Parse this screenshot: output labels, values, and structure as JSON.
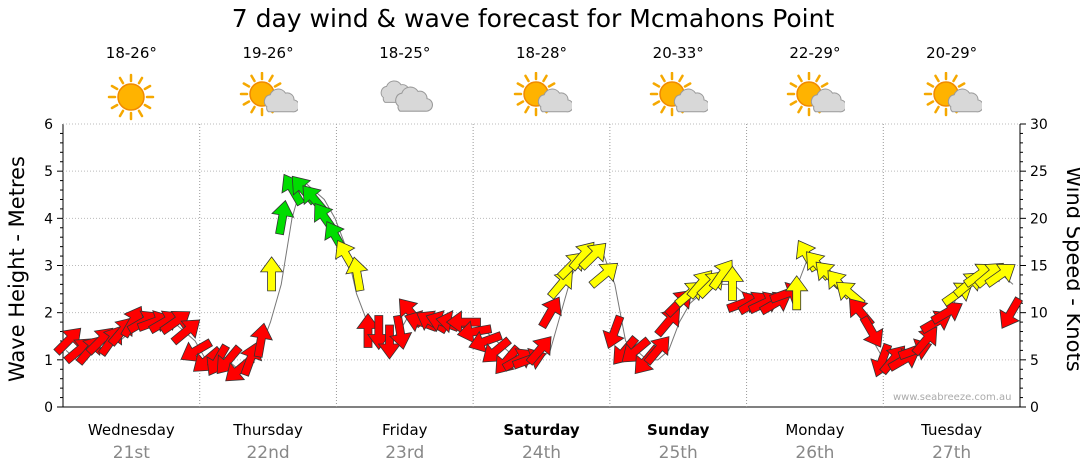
{
  "title": "7 day wind & wave forecast for Mcmahons Point",
  "credit": "www.seabreeze.com.au",
  "colors": {
    "calm": "#ff0000",
    "moderate": "#ffff00",
    "fresh": "#00dd00"
  },
  "days": [
    {
      "name": "Wednesday",
      "date": "21st",
      "temp": "18-26°",
      "icon": "sun-icon",
      "bold": false
    },
    {
      "name": "Thursday",
      "date": "22nd",
      "temp": "19-26°",
      "icon": "sun-cloud-icon",
      "bold": false
    },
    {
      "name": "Friday",
      "date": "23rd",
      "temp": "18-25°",
      "icon": "cloud-icon",
      "bold": false
    },
    {
      "name": "Saturday",
      "date": "24th",
      "temp": "18-28°",
      "icon": "sun-cloud-icon",
      "bold": true
    },
    {
      "name": "Sunday",
      "date": "25th",
      "temp": "20-33°",
      "icon": "sun-cloud-icon",
      "bold": true
    },
    {
      "name": "Monday",
      "date": "26th",
      "temp": "22-29°",
      "icon": "sun-cloud-icon",
      "bold": false
    },
    {
      "name": "Tuesday",
      "date": "27th",
      "temp": "20-29°",
      "icon": "sun-cloud-icon",
      "bold": false
    }
  ],
  "chart_data": {
    "type": "line",
    "ylabel_left": "Wave Height - Metres",
    "ylabel_right": "Wind Speed - Knots",
    "ylim_left": [
      0,
      6
    ],
    "ylim_right": [
      0,
      30
    ],
    "yticks_left": [
      "0",
      "1",
      "2",
      "3",
      "4",
      "5",
      "6"
    ],
    "yticks_right": [
      "0",
      "5",
      "10",
      "15",
      "20",
      "25",
      "30"
    ],
    "grid": true,
    "series": [
      {
        "name": "Wind Speed - Knots",
        "axis": "right",
        "values": [
          6,
          5,
          6,
          6,
          7,
          7,
          8,
          9,
          9,
          9,
          9,
          8,
          7,
          5,
          6,
          5,
          4,
          4,
          6,
          9,
          13,
          20,
          24,
          23,
          22,
          20,
          17,
          12,
          9,
          8,
          7,
          8,
          10,
          10,
          9,
          9,
          9,
          9,
          8,
          8,
          7,
          6,
          5,
          5,
          5,
          6,
          10,
          14,
          16,
          17,
          16,
          13,
          7,
          6,
          5,
          5,
          6,
          9,
          11,
          12,
          13,
          13,
          13,
          12,
          12,
          12,
          12,
          12,
          13,
          16,
          15,
          14,
          13,
          12,
          10,
          7,
          5,
          5,
          5,
          6,
          8,
          9,
          10,
          12,
          13,
          14,
          14,
          14,
          13
        ]
      }
    ],
    "wind_arrows": [
      {
        "knots": 7,
        "dir": 45,
        "color": "red"
      },
      {
        "knots": 6,
        "dir": 50,
        "color": "red"
      },
      {
        "knots": 6,
        "dir": 40,
        "color": "red"
      },
      {
        "knots": 7,
        "dir": 45,
        "color": "red"
      },
      {
        "knots": 7,
        "dir": 35,
        "color": "red"
      },
      {
        "knots": 8,
        "dir": 40,
        "color": "red"
      },
      {
        "knots": 9,
        "dir": 30,
        "color": "red"
      },
      {
        "knots": 9,
        "dir": 60,
        "color": "red"
      },
      {
        "knots": 9,
        "dir": 70,
        "color": "red"
      },
      {
        "knots": 9,
        "dir": 60,
        "color": "red"
      },
      {
        "knots": 9,
        "dir": 55,
        "color": "red"
      },
      {
        "knots": 8,
        "dir": 50,
        "color": "red"
      },
      {
        "knots": 6,
        "dir": 240,
        "color": "red"
      },
      {
        "knots": 5,
        "dir": 230,
        "color": "red"
      },
      {
        "knots": 5,
        "dir": 210,
        "color": "red"
      },
      {
        "knots": 5,
        "dir": 220,
        "color": "red"
      },
      {
        "knots": 4,
        "dir": 230,
        "color": "red"
      },
      {
        "knots": 5,
        "dir": 20,
        "color": "red"
      },
      {
        "knots": 7,
        "dir": 10,
        "color": "red"
      },
      {
        "knots": 14,
        "dir": 0,
        "color": "yellow"
      },
      {
        "knots": 20,
        "dir": 10,
        "color": "green"
      },
      {
        "knots": 23,
        "dir": 330,
        "color": "green"
      },
      {
        "knots": 23,
        "dir": 320,
        "color": "green"
      },
      {
        "knots": 22,
        "dir": 320,
        "color": "green"
      },
      {
        "knots": 20,
        "dir": 325,
        "color": "green"
      },
      {
        "knots": 18,
        "dir": 330,
        "color": "green"
      },
      {
        "knots": 16,
        "dir": 330,
        "color": "yellow"
      },
      {
        "knots": 14,
        "dir": 350,
        "color": "yellow"
      },
      {
        "knots": 8,
        "dir": 0,
        "color": "red"
      },
      {
        "knots": 8,
        "dir": 180,
        "color": "red"
      },
      {
        "knots": 7,
        "dir": 180,
        "color": "red"
      },
      {
        "knots": 8,
        "dir": 170,
        "color": "red"
      },
      {
        "knots": 10,
        "dir": 320,
        "color": "red"
      },
      {
        "knots": 9,
        "dir": 290,
        "color": "red"
      },
      {
        "knots": 9,
        "dir": 300,
        "color": "red"
      },
      {
        "knots": 9,
        "dir": 290,
        "color": "red"
      },
      {
        "knots": 9,
        "dir": 280,
        "color": "red"
      },
      {
        "knots": 9,
        "dir": 270,
        "color": "red"
      },
      {
        "knots": 8,
        "dir": 260,
        "color": "red"
      },
      {
        "knots": 7,
        "dir": 250,
        "color": "red"
      },
      {
        "knots": 6,
        "dir": 230,
        "color": "red"
      },
      {
        "knots": 5,
        "dir": 220,
        "color": "red"
      },
      {
        "knots": 5,
        "dir": 60,
        "color": "red"
      },
      {
        "knots": 5,
        "dir": 70,
        "color": "red"
      },
      {
        "knots": 6,
        "dir": 40,
        "color": "red"
      },
      {
        "knots": 10,
        "dir": 30,
        "color": "red"
      },
      {
        "knots": 13,
        "dir": 40,
        "color": "yellow"
      },
      {
        "knots": 15,
        "dir": 45,
        "color": "yellow"
      },
      {
        "knots": 16,
        "dir": 40,
        "color": "yellow"
      },
      {
        "knots": 16,
        "dir": 45,
        "color": "yellow"
      },
      {
        "knots": 14,
        "dir": 50,
        "color": "yellow"
      },
      {
        "knots": 8,
        "dir": 200,
        "color": "red"
      },
      {
        "knots": 6,
        "dir": 220,
        "color": "red"
      },
      {
        "knots": 6,
        "dir": 230,
        "color": "red"
      },
      {
        "knots": 5,
        "dir": 220,
        "color": "red"
      },
      {
        "knots": 6,
        "dir": 40,
        "color": "red"
      },
      {
        "knots": 9,
        "dir": 40,
        "color": "red"
      },
      {
        "knots": 11,
        "dir": 45,
        "color": "red"
      },
      {
        "knots": 12,
        "dir": 50,
        "color": "yellow"
      },
      {
        "knots": 13,
        "dir": 40,
        "color": "yellow"
      },
      {
        "knots": 13,
        "dir": 45,
        "color": "yellow"
      },
      {
        "knots": 14,
        "dir": 35,
        "color": "yellow"
      },
      {
        "knots": 13,
        "dir": 0,
        "color": "yellow"
      },
      {
        "knots": 11,
        "dir": 70,
        "color": "red"
      },
      {
        "knots": 11,
        "dir": 60,
        "color": "red"
      },
      {
        "knots": 11,
        "dir": 65,
        "color": "red"
      },
      {
        "knots": 11,
        "dir": 60,
        "color": "red"
      },
      {
        "knots": 12,
        "dir": 70,
        "color": "red"
      },
      {
        "knots": 12,
        "dir": 0,
        "color": "yellow"
      },
      {
        "knots": 16,
        "dir": 330,
        "color": "yellow"
      },
      {
        "knots": 15,
        "dir": 320,
        "color": "yellow"
      },
      {
        "knots": 14,
        "dir": 315,
        "color": "yellow"
      },
      {
        "knots": 13,
        "dir": 320,
        "color": "yellow"
      },
      {
        "knots": 12,
        "dir": 310,
        "color": "yellow"
      },
      {
        "knots": 10,
        "dir": 320,
        "color": "red"
      },
      {
        "knots": 8,
        "dir": 150,
        "color": "red"
      },
      {
        "knots": 5,
        "dir": 200,
        "color": "red"
      },
      {
        "knots": 5,
        "dir": 40,
        "color": "red"
      },
      {
        "knots": 5,
        "dir": 60,
        "color": "red"
      },
      {
        "knots": 6,
        "dir": 70,
        "color": "red"
      },
      {
        "knots": 7,
        "dir": 40,
        "color": "red"
      },
      {
        "knots": 9,
        "dir": 60,
        "color": "red"
      },
      {
        "knots": 10,
        "dir": 60,
        "color": "red"
      },
      {
        "knots": 12,
        "dir": 55,
        "color": "yellow"
      },
      {
        "knots": 13,
        "dir": 50,
        "color": "yellow"
      },
      {
        "knots": 14,
        "dir": 55,
        "color": "yellow"
      },
      {
        "knots": 14,
        "dir": 50,
        "color": "yellow"
      },
      {
        "knots": 14,
        "dir": 55,
        "color": "yellow"
      },
      {
        "knots": 10,
        "dir": 210,
        "color": "red"
      }
    ]
  }
}
